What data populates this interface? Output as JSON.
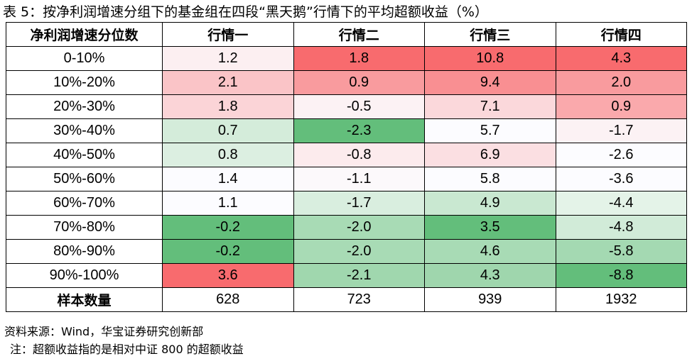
{
  "title": "表 5：按净利润增速分组下的基金组在四段“黑天鹅”行情下的平均超额收益（%）",
  "table": {
    "headers": [
      "净利润增速分位数",
      "行情一",
      "行情二",
      "行情三",
      "行情四"
    ],
    "rows": [
      {
        "label": "0-10%",
        "values": [
          "1.2",
          "1.8",
          "10.8",
          "4.3"
        ],
        "colors": [
          "#FCEFF1",
          "#F86B6E",
          "#F86B6E",
          "#F86B6E"
        ]
      },
      {
        "label": "10%-20%",
        "values": [
          "2.1",
          "0.9",
          "9.4",
          "2.0"
        ],
        "colors": [
          "#FAC4C7",
          "#F99B9E",
          "#F98F92",
          "#F99B9E"
        ]
      },
      {
        "label": "20%-30%",
        "values": [
          "1.8",
          "-0.5",
          "7.1",
          "0.9"
        ],
        "colors": [
          "#FBD4D7",
          "#FCF2F4",
          "#FBD8DB",
          "#FAA9AC"
        ]
      },
      {
        "label": "30%-40%",
        "values": [
          "0.7",
          "-2.3",
          "5.7",
          "-1.7"
        ],
        "colors": [
          "#D4ECDA",
          "#63BE7B",
          "#FCFCFF",
          "#FCF2F4"
        ]
      },
      {
        "label": "40%-50%",
        "values": [
          "0.8",
          "-0.8",
          "6.9",
          "-2.6"
        ],
        "colors": [
          "#DCEFE1",
          "#FCEBED",
          "#FBDFE2",
          "#FCFCFF"
        ]
      },
      {
        "label": "50%-60%",
        "values": [
          "1.4",
          "-1.1",
          "5.8",
          "-3.6"
        ],
        "colors": [
          "#FCFCFF",
          "#FCF9FB",
          "#FCFCFF",
          "#FCFCFF"
        ]
      },
      {
        "label": "60%-70%",
        "values": [
          "1.1",
          "-1.7",
          "4.9",
          "-4.4"
        ],
        "colors": [
          "#FCFCFF",
          "#D9EEDF",
          "#C9E8D1",
          "#E4F3E8"
        ]
      },
      {
        "label": "70%-80%",
        "values": [
          "-0.2",
          "-2.0",
          "3.5",
          "-4.8"
        ],
        "colors": [
          "#63BE7B",
          "#A8DBB5",
          "#63BE7B",
          "#D1EBD8"
        ]
      },
      {
        "label": "80%-90%",
        "values": [
          "-0.2",
          "-2.0",
          "4.6",
          "-5.8"
        ],
        "colors": [
          "#63BE7B",
          "#A8DBB5",
          "#A8DBB5",
          "#A4D9B2"
        ]
      },
      {
        "label": "90%-100%",
        "values": [
          "3.6",
          "-2.1",
          "4.3",
          "-8.8"
        ],
        "colors": [
          "#F86B6E",
          "#A0D7AE",
          "#9FD6AD",
          "#63BE7B"
        ]
      }
    ],
    "footer": {
      "label": "样本数量",
      "values": [
        "628",
        "723",
        "939",
        "1932"
      ]
    }
  },
  "notes": {
    "source": "资料来源：Wind，华宝证券研究创新部",
    "remark": "注：超额收益指的是相对中证 800 的超额收益"
  }
}
